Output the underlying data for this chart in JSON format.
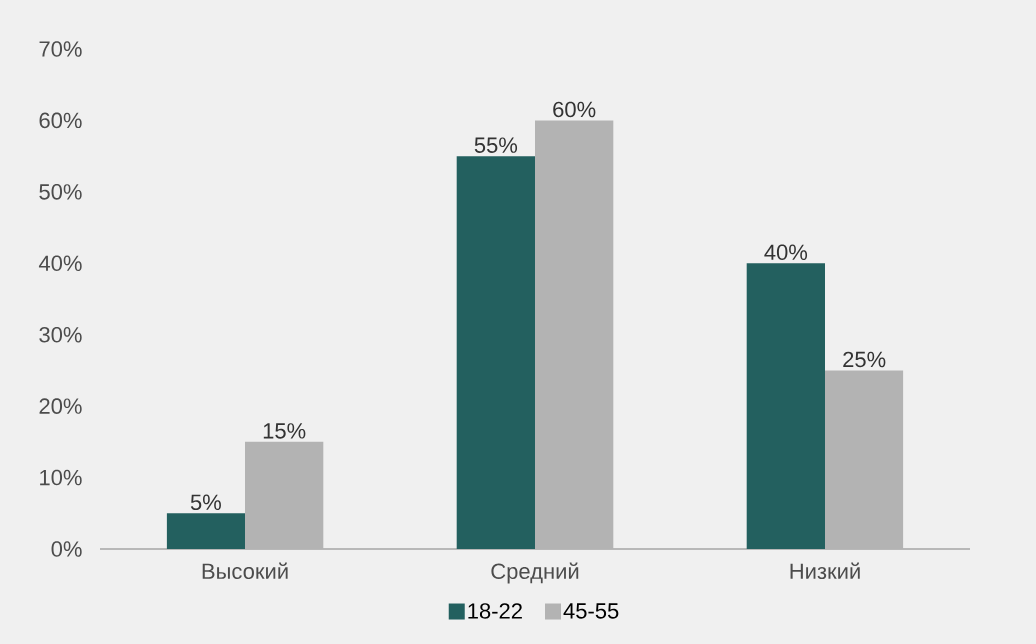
{
  "chart_data": {
    "type": "bar",
    "categories": [
      "Высокий",
      "Средний",
      "Низкий"
    ],
    "series": [
      {
        "name": "18-22",
        "color": "#23605f",
        "values": [
          5,
          55,
          40
        ],
        "value_labels": [
          "5%",
          "55%",
          "40%"
        ]
      },
      {
        "name": "45-55",
        "color": "#b3b3b3",
        "values": [
          15,
          60,
          25
        ],
        "value_labels": [
          "15%",
          "60%",
          "25%"
        ]
      }
    ],
    "ylim": [
      0,
      70
    ],
    "yticks": [
      {
        "value": 0,
        "label": "0%"
      },
      {
        "value": 10,
        "label": "10%"
      },
      {
        "value": 20,
        "label": "20%"
      },
      {
        "value": 30,
        "label": "30%"
      },
      {
        "value": 40,
        "label": "40%"
      },
      {
        "value": 50,
        "label": "50%"
      },
      {
        "value": 60,
        "label": "60%"
      },
      {
        "value": 70,
        "label": "70%"
      }
    ],
    "legend": "bottom"
  }
}
